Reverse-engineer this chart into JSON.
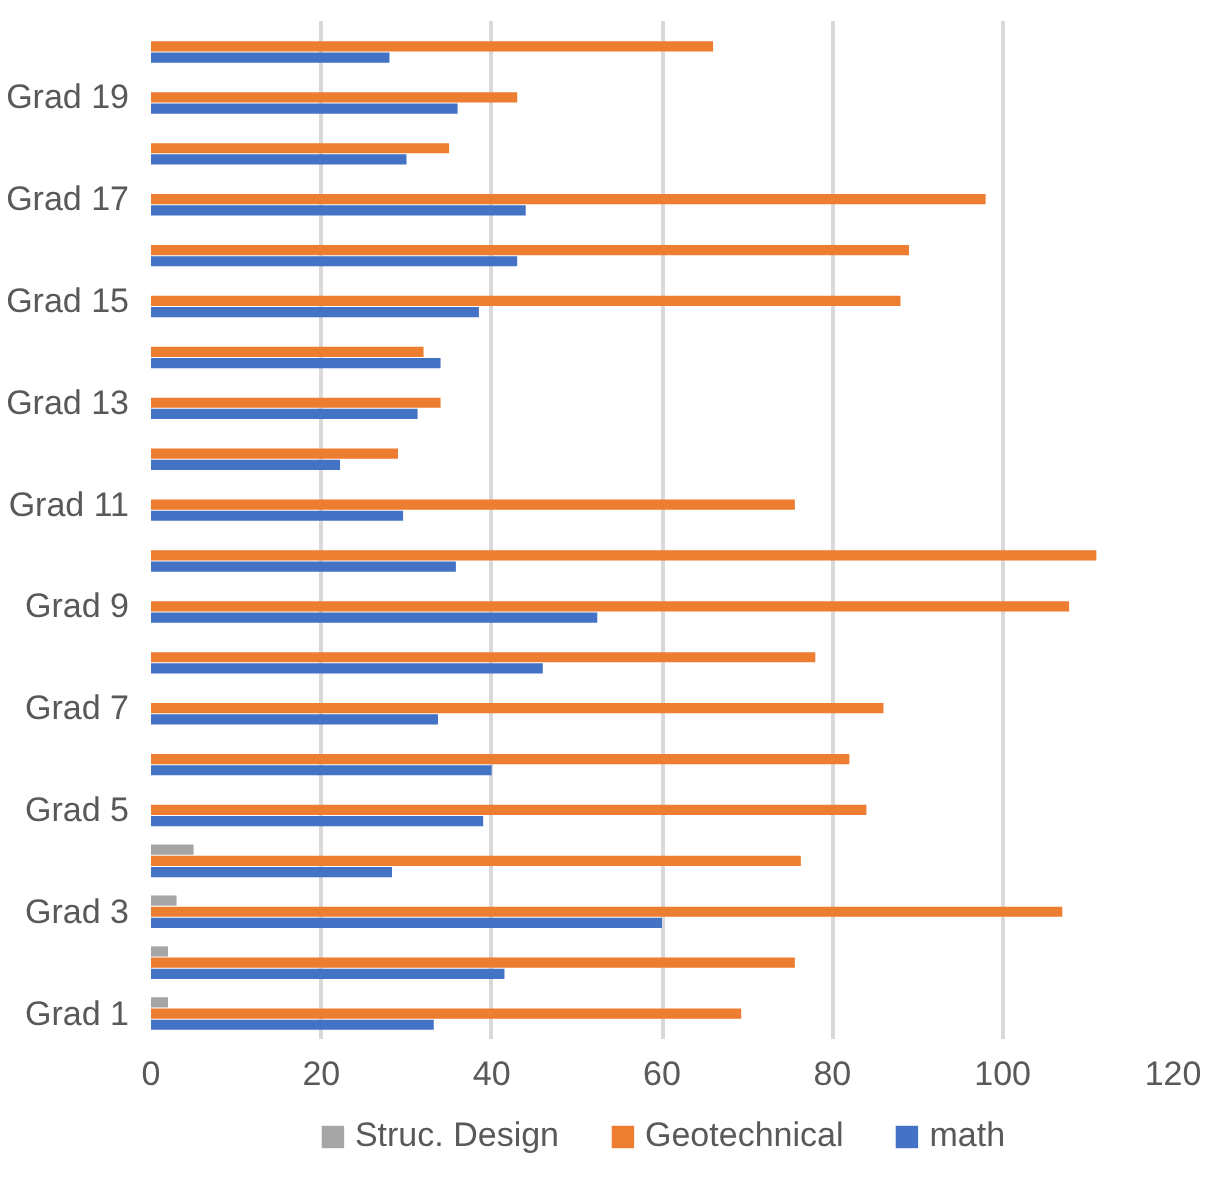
{
  "chart_data": {
    "type": "bar",
    "orientation": "horizontal",
    "categories": [
      null,
      "Grad 19",
      null,
      "Grad 17",
      null,
      "Grad 15",
      null,
      "Grad 13",
      null,
      "Grad 11",
      null,
      "Grad 9",
      null,
      "Grad 7",
      null,
      "Grad 5",
      null,
      "Grad 3",
      null,
      "Grad 1"
    ],
    "series": [
      {
        "name": "Struc. Design",
        "color": "#a5a5a5",
        "values": [
          null,
          null,
          null,
          null,
          null,
          null,
          null,
          null,
          null,
          null,
          null,
          null,
          null,
          null,
          null,
          null,
          5,
          3,
          2,
          2
        ]
      },
      {
        "name": "Geotechnical",
        "color": "#ed7d31",
        "values": [
          66,
          43,
          35,
          98,
          89,
          88,
          32,
          34,
          29,
          75.6,
          111,
          107.8,
          78,
          86,
          82,
          84,
          76.3,
          107,
          75.6,
          69.3
        ]
      },
      {
        "name": "math",
        "color": "#4472c4",
        "values": [
          28,
          36,
          30,
          44,
          43,
          38.5,
          34,
          31.3,
          22.2,
          29.6,
          35.8,
          52.4,
          46,
          33.7,
          40,
          39,
          28.3,
          60,
          41.5,
          33.2
        ]
      }
    ],
    "xlim": [
      0,
      120
    ],
    "xticks": [
      0,
      20,
      40,
      60,
      80,
      100,
      120
    ],
    "grid": "x",
    "legend": "bottom"
  }
}
